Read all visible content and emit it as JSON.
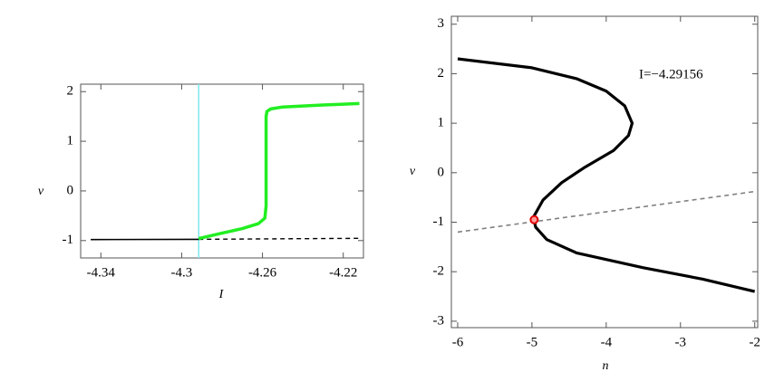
{
  "chart_data": [
    {
      "type": "line",
      "x_label": "I",
      "y_label": "v",
      "xlim": [
        -4.35,
        -4.21
      ],
      "ylim": [
        -1.35,
        2.15
      ],
      "xticks": [
        -4.34,
        -4.3,
        -4.26,
        -4.22
      ],
      "yticks": [
        -1,
        0,
        1,
        2
      ],
      "vline": {
        "x": -4.29156,
        "color": "#7fe8f0"
      },
      "series": [
        {
          "color": "#000000",
          "width": 1.6,
          "dash": false,
          "x": [
            -4.345,
            -4.29156
          ],
          "values": [
            -0.98,
            -0.975
          ]
        },
        {
          "color": "#000000",
          "width": 1.4,
          "dash": true,
          "x": [
            -4.29156,
            -4.212
          ],
          "values": [
            -0.975,
            -0.955
          ]
        },
        {
          "color": "#22ee22",
          "width": 3.5,
          "dash": false,
          "x": [
            -4.29156,
            -4.28,
            -4.27,
            -4.262,
            -4.2588,
            -4.2582,
            -4.2582,
            -4.2578,
            -4.256,
            -4.25,
            -4.24,
            -4.23,
            -4.212
          ],
          "values": [
            -0.96,
            -0.85,
            -0.76,
            -0.66,
            -0.55,
            -0.3,
            1.5,
            1.6,
            1.65,
            1.69,
            1.71,
            1.73,
            1.76
          ]
        }
      ]
    },
    {
      "type": "line",
      "x_label": "n",
      "y_label": "v",
      "annotation": "I=−4.29156",
      "xlim": [
        -6.085,
        -1.96
      ],
      "ylim": [
        -3.13,
        3.16
      ],
      "xticks": [
        -6,
        -5,
        -4,
        -3,
        -2
      ],
      "yticks": [
        -3,
        -2,
        -1,
        0,
        1,
        2,
        3
      ],
      "series": [
        {
          "color": "#000000",
          "width": 3.2,
          "dash": false,
          "x": [
            -6,
            -5,
            -4.4,
            -4,
            -3.75,
            -3.65,
            -3.7,
            -3.9,
            -4.3,
            -4.6,
            -4.85,
            -4.98,
            -4.95,
            -4.8,
            -4.4,
            -3.5,
            -2.7,
            -2
          ],
          "values": [
            2.3,
            2.12,
            1.9,
            1.65,
            1.35,
            1.0,
            0.75,
            0.45,
            0.1,
            -0.2,
            -0.55,
            -0.9,
            -1.1,
            -1.35,
            -1.62,
            -1.92,
            -2.15,
            -2.4
          ]
        },
        {
          "color": "#808080",
          "width": 1.6,
          "dash": true,
          "x": [
            -6,
            -2
          ],
          "values": [
            -1.2,
            -0.38
          ]
        },
        {
          "color": "#e00000",
          "marker": true,
          "x": [
            -4.97
          ],
          "values": [
            -0.95
          ]
        }
      ]
    }
  ]
}
